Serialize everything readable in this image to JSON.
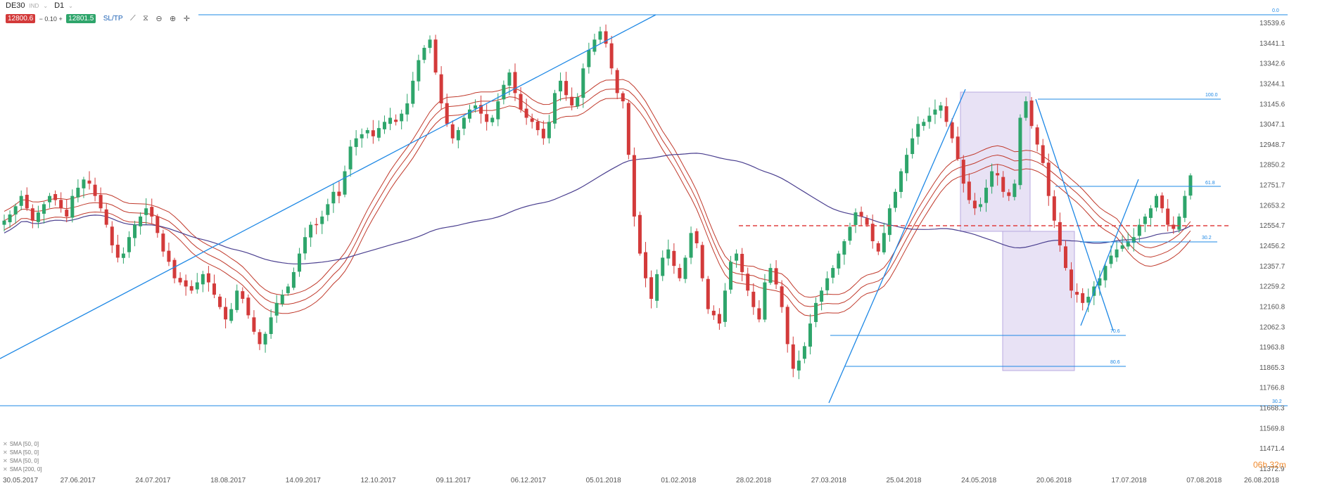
{
  "header": {
    "symbol": "DE30",
    "symbol_sub": "IND",
    "timeframe": "D1",
    "sell_price": "12800.6",
    "lot": "0.10",
    "buy_price": "12801.5",
    "sltp_label": "SL/TP",
    "minus": "−",
    "plus": "+",
    "icons": [
      "line-chart-icon",
      "indicators-icon",
      "zoom-out-icon",
      "zoom-in-icon",
      "crosshair-icon"
    ]
  },
  "countdown": "06h 32m",
  "legend": {
    "items": [
      "SMA [50, 0]",
      "SMA [50, 0]",
      "SMA [50, 0]",
      "SMA [200, 0]"
    ]
  },
  "colors": {
    "bull": "#2ea56b",
    "bear": "#d33a3a",
    "sma50": "#c0392b",
    "sma200": "#4a3f8f",
    "trend": "#1e88e5",
    "zone": "#d8cfee"
  },
  "chart_data": {
    "type": "candlestick",
    "instrument": "DE30",
    "timeframe": "D1",
    "x_labels": [
      "30.05.2017",
      "27.06.2017",
      "24.07.2017",
      "18.08.2017",
      "14.09.2017",
      "12.10.2017",
      "09.11.2017",
      "06.12.2017",
      "05.01.2018",
      "01.02.2018",
      "28.02.2018",
      "27.03.2018",
      "25.04.2018",
      "24.05.2018",
      "20.06.2018",
      "17.07.2018",
      "07.08.2018",
      "26.08.2018"
    ],
    "y_labels": [
      "13539.6",
      "13441.1",
      "13342.6",
      "13244.1",
      "13145.6",
      "13047.1",
      "12948.7",
      "12850.2",
      "12751.7",
      "12653.2",
      "12554.7",
      "12456.2",
      "12357.7",
      "12259.2",
      "12160.8",
      "12062.3",
      "11963.8",
      "11865.3",
      "11766.8",
      "11668.3",
      "11569.8",
      "11471.4",
      "11372.9"
    ],
    "ylim": [
      11372.9,
      13539.6
    ],
    "fib_labels": [
      "0.0",
      "100.0",
      "61.8",
      "30.2",
      "70.6",
      "80.6",
      "30.2"
    ],
    "close_path": [
      12580,
      12610,
      12650,
      12700,
      12640,
      12580,
      12620,
      12660,
      12700,
      12680,
      12640,
      12600,
      12700,
      12740,
      12780,
      12760,
      12700,
      12640,
      12560,
      12460,
      12400,
      12420,
      12500,
      12560,
      12600,
      12640,
      12600,
      12520,
      12430,
      12380,
      12300,
      12280,
      12260,
      12240,
      12280,
      12320,
      12280,
      12220,
      12160,
      12100,
      12150,
      12240,
      12200,
      12120,
      12040,
      11980,
      12030,
      12110,
      12180,
      12220,
      12260,
      12330,
      12420,
      12500,
      12560,
      12560,
      12600,
      12660,
      12720,
      12700,
      12820,
      12940,
      12980,
      13000,
      13020,
      12990,
      13030,
      13060,
      13080,
      13060,
      13100,
      13150,
      13260,
      13360,
      13420,
      13460,
      13300,
      13150,
      13050,
      12980,
      13020,
      13080,
      13120,
      13140,
      13100,
      13060,
      13080,
      13160,
      13240,
      13300,
      13200,
      13120,
      13080,
      13060,
      13020,
      12980,
      13060,
      13200,
      13260,
      13190,
      13140,
      13180,
      13320,
      13410,
      13460,
      13500,
      13440,
      13320,
      13200,
      13160,
      12900,
      12600,
      12420,
      12300,
      12200,
      12320,
      12400,
      12440,
      12360,
      12300,
      12400,
      12520,
      12470,
      12300,
      12150,
      12120,
      12080,
      12240,
      12380,
      12420,
      12330,
      12240,
      12160,
      12100,
      12280,
      12350,
      12270,
      12160,
      11980,
      11860,
      11900,
      11970,
      12080,
      12180,
      12240,
      12300,
      12350,
      12420,
      12480,
      12550,
      12620,
      12600,
      12560,
      12480,
      12430,
      12520,
      12640,
      12720,
      12820,
      12900,
      12980,
      13050,
      13060,
      13090,
      13120,
      13140,
      13060,
      12980,
      12880,
      12760,
      12680,
      12640,
      12660,
      12740,
      12820,
      12800,
      12720,
      12700,
      12760,
      13080,
      13160,
      13040,
      12950,
      12860,
      12700,
      12580,
      12460,
      12350,
      12240,
      12220,
      12180,
      12210,
      12260,
      12300,
      12360,
      12410,
      12440,
      12460,
      12480,
      12500,
      12560,
      12600,
      12640,
      12700,
      12640,
      12560,
      12540,
      12600,
      12700,
      12800
    ]
  }
}
